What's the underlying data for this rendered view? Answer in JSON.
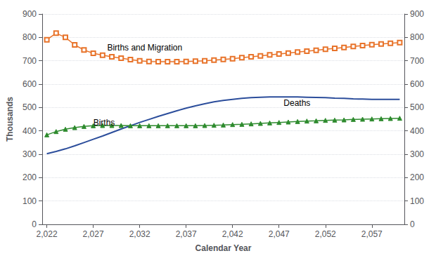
{
  "chart_data": {
    "type": "line",
    "title": "",
    "xlabel": "Calendar Year",
    "ylabel": "Thousands",
    "xlim": [
      2021.5,
      2060.5
    ],
    "xticks": [
      2022,
      2027,
      2032,
      2037,
      2042,
      2047,
      2052,
      2057
    ],
    "ylim": [
      0,
      900
    ],
    "yticks": [
      0,
      100,
      200,
      300,
      400,
      500,
      600,
      700,
      800,
      900
    ],
    "y2lim": [
      0,
      900
    ],
    "y2ticks": [
      0,
      100,
      200,
      300,
      400,
      500,
      600,
      700,
      800,
      900
    ],
    "grid": true,
    "x": [
      2022,
      2023,
      2024,
      2025,
      2026,
      2027,
      2028,
      2029,
      2030,
      2031,
      2032,
      2033,
      2034,
      2035,
      2036,
      2037,
      2038,
      2039,
      2040,
      2041,
      2042,
      2043,
      2044,
      2045,
      2046,
      2047,
      2048,
      2049,
      2050,
      2051,
      2052,
      2053,
      2054,
      2055,
      2056,
      2057,
      2058,
      2059,
      2060
    ],
    "series": [
      {
        "name": "Deaths",
        "color": "#2B4D9B",
        "marker": "none",
        "values": [
          302,
          312,
          323,
          336,
          350,
          364,
          378,
          393,
          408,
          422,
          436,
          449,
          462,
          474,
          486,
          497,
          507,
          516,
          524,
          530,
          535,
          539,
          542,
          544,
          545,
          545,
          545,
          545,
          544,
          543,
          542,
          540,
          539,
          537,
          536,
          535,
          535,
          535,
          535
        ]
      },
      {
        "name": "Births",
        "color": "#2E8B2E",
        "marker": "triangle",
        "values": [
          383,
          397,
          407,
          414,
          419,
          422,
          423,
          423,
          423,
          422,
          422,
          422,
          422,
          422,
          422,
          422,
          422,
          423,
          424,
          425,
          427,
          428,
          430,
          432,
          434,
          436,
          438,
          440,
          442,
          443,
          445,
          446,
          447,
          449,
          450,
          451,
          452,
          453,
          454
        ]
      },
      {
        "name": "Births and Migration",
        "color": "#E8732A",
        "marker": "square-open",
        "values": [
          790,
          818,
          800,
          768,
          746,
          732,
          724,
          717,
          711,
          705,
          700,
          697,
          696,
          696,
          696,
          697,
          698,
          700,
          703,
          706,
          709,
          713,
          717,
          721,
          725,
          729,
          733,
          737,
          741,
          745,
          749,
          753,
          757,
          761,
          765,
          769,
          772,
          775,
          778
        ]
      }
    ],
    "annotations": [
      {
        "text": "Births and Migration",
        "x": 2028.5,
        "y": 755
      },
      {
        "text": "Deaths",
        "x": 2047.5,
        "y": 518
      },
      {
        "text": "Births",
        "x": 2027,
        "y": 434
      }
    ]
  }
}
